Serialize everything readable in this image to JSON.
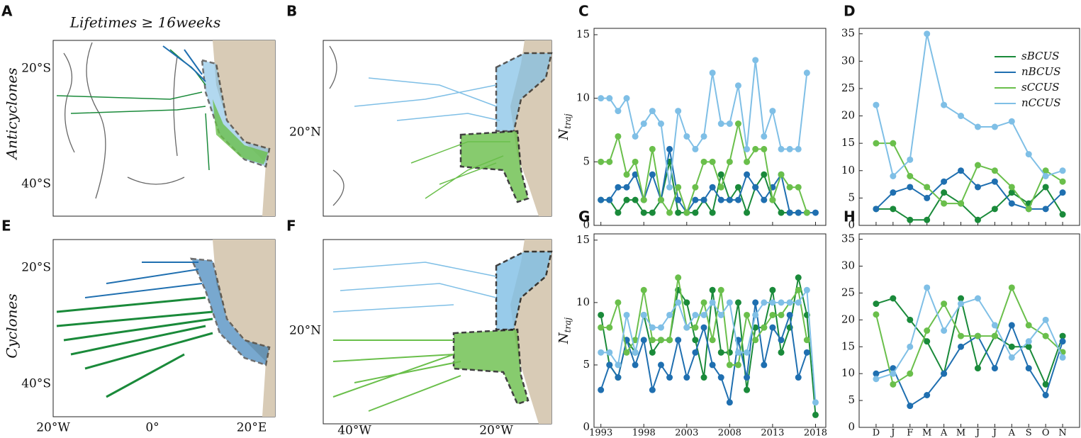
{
  "maps": {
    "title": "Lifetimes ≥ 16weeks",
    "row_labels": [
      "Anticyclones",
      "Cyclones"
    ],
    "panel_letters": [
      "A",
      "B",
      "E",
      "F"
    ],
    "a_lat_ticks": [
      "20°S",
      "40°S"
    ],
    "b_lat_ticks": [
      "20°N"
    ],
    "e_lat_ticks": [
      "20°S",
      "40°S"
    ],
    "f_lat_ticks": [
      "20°N"
    ],
    "e_lon_ticks": [
      "20°W",
      "0°",
      "20°E"
    ],
    "f_lon_ticks": [
      "40°W",
      "20°W"
    ]
  },
  "chart_data": [
    {
      "panel": "C",
      "type": "line",
      "x": [
        1993,
        1994,
        1995,
        1996,
        1997,
        1998,
        1999,
        2000,
        2001,
        2002,
        2003,
        2004,
        2005,
        2006,
        2007,
        2008,
        2009,
        2010,
        2011,
        2012,
        2013,
        2014,
        2015,
        2016,
        2017,
        2018
      ],
      "xlim": [
        1992.2,
        2019.2
      ],
      "xticks": [
        1993,
        1998,
        2003,
        2008,
        2013,
        2018
      ],
      "xtick_labels": false,
      "ylim": [
        0,
        15.5
      ],
      "yticks": [
        0,
        5,
        10,
        15
      ],
      "ylabel": {
        "base": "N",
        "subscript": "traj"
      },
      "legend": false,
      "series": [
        {
          "name": "sBCUS",
          "color": "#1a8a3a",
          "values": [
            2,
            2,
            1,
            2,
            2,
            1,
            1,
            2,
            5,
            1,
            1,
            1,
            2,
            1,
            4,
            2,
            3,
            1,
            3,
            4,
            2,
            1,
            1,
            1,
            null,
            null
          ]
        },
        {
          "name": "nBCUS",
          "color": "#1f6fb0",
          "values": [
            2,
            2,
            3,
            3,
            4,
            2,
            4,
            2,
            6,
            2,
            1,
            2,
            2,
            3,
            2,
            2,
            2,
            4,
            3,
            2,
            3,
            4,
            1,
            1,
            1,
            1
          ]
        },
        {
          "name": "sCCUS",
          "color": "#6abf4b",
          "values": [
            5,
            5,
            7,
            4,
            5,
            2,
            6,
            2,
            1,
            3,
            1,
            3,
            5,
            5,
            3,
            5,
            8,
            5,
            6,
            6,
            2,
            4,
            3,
            3,
            1,
            null
          ]
        },
        {
          "name": "nCCUS",
          "color": "#7fbfe6",
          "values": [
            10,
            10,
            9,
            10,
            7,
            8,
            9,
            8,
            3,
            9,
            7,
            6,
            7,
            12,
            8,
            8,
            11,
            6,
            13,
            7,
            9,
            6,
            6,
            6,
            12,
            null
          ]
        }
      ]
    },
    {
      "panel": "D",
      "type": "line",
      "categories": [
        null,
        null,
        null,
        null,
        null,
        null,
        null,
        null,
        null,
        null,
        null,
        null
      ],
      "ylim": [
        0,
        36
      ],
      "yticks": [
        0,
        5,
        10,
        15,
        20,
        25,
        30,
        35
      ],
      "legend": true,
      "legend_corner": "upper right",
      "series": [
        {
          "name": "sBCUS",
          "color": "#1a8a3a",
          "values": [
            3,
            3,
            1,
            1,
            6,
            4,
            1,
            3,
            6,
            4,
            7,
            2
          ]
        },
        {
          "name": "nBCUS",
          "color": "#1f6fb0",
          "values": [
            3,
            6,
            7,
            5,
            8,
            10,
            7,
            8,
            4,
            3,
            3,
            6
          ]
        },
        {
          "name": "sCCUS",
          "color": "#6abf4b",
          "values": [
            15,
            15,
            9,
            7,
            4,
            4,
            11,
            10,
            7,
            3,
            10,
            8
          ]
        },
        {
          "name": "nCCUS",
          "color": "#7fbfe6",
          "values": [
            22,
            9,
            12,
            35,
            22,
            20,
            18,
            18,
            19,
            13,
            9,
            10
          ]
        }
      ]
    },
    {
      "panel": "G",
      "type": "line",
      "x": [
        1993,
        1994,
        1995,
        1996,
        1997,
        1998,
        1999,
        2000,
        2001,
        2002,
        2003,
        2004,
        2005,
        2006,
        2007,
        2008,
        2009,
        2010,
        2011,
        2012,
        2013,
        2014,
        2015,
        2016,
        2017,
        2018
      ],
      "xlim": [
        1992.2,
        2019.2
      ],
      "xticks": [
        1993,
        1998,
        2003,
        2008,
        2013,
        2018
      ],
      "xtick_labels": true,
      "ylim": [
        0,
        15.5
      ],
      "yticks": [
        0,
        5,
        10,
        15
      ],
      "ylabel": {
        "base": "N",
        "subscript": "traj"
      },
      "legend": false,
      "series": [
        {
          "name": "sBCUS",
          "color": "#1a8a3a",
          "values": [
            9,
            5,
            4,
            7,
            6,
            9,
            6,
            7,
            7,
            11,
            10,
            7,
            4,
            11,
            6,
            6,
            10,
            3,
            8,
            8,
            11,
            6,
            8,
            12,
            9,
            1
          ]
        },
        {
          "name": "nBCUS",
          "color": "#1f6fb0",
          "values": [
            3,
            5,
            4,
            7,
            5,
            7,
            3,
            5,
            4,
            7,
            4,
            6,
            8,
            5,
            4,
            2,
            7,
            4,
            10,
            5,
            8,
            7,
            9,
            4,
            6,
            null
          ]
        },
        {
          "name": "sCCUS",
          "color": "#6abf4b",
          "values": [
            8,
            8,
            10,
            6,
            7,
            11,
            7,
            7,
            7,
            12,
            8,
            8,
            10,
            7,
            11,
            5,
            5,
            9,
            7,
            8,
            9,
            9,
            10,
            11,
            7,
            null
          ]
        },
        {
          "name": "nCCUS",
          "color": "#7fbfe6",
          "values": [
            6,
            6,
            5,
            9,
            6,
            9,
            8,
            8,
            9,
            10,
            8,
            9,
            9,
            10,
            9,
            10,
            6,
            6,
            9,
            10,
            10,
            10,
            10,
            10,
            11,
            2
          ]
        }
      ]
    },
    {
      "panel": "H",
      "type": "line",
      "categories": [
        "D",
        "J",
        "F",
        "M",
        "A",
        "M",
        "J",
        "J",
        "A",
        "S",
        "O",
        "N"
      ],
      "ylim": [
        0,
        36
      ],
      "yticks": [
        0,
        5,
        10,
        15,
        20,
        25,
        30,
        35
      ],
      "legend": false,
      "series": [
        {
          "name": "sBCUS",
          "color": "#1a8a3a",
          "values": [
            23,
            24,
            20,
            16,
            10,
            24,
            11,
            17,
            15,
            15,
            8,
            17
          ]
        },
        {
          "name": "nBCUS",
          "color": "#1f6fb0",
          "values": [
            10,
            11,
            4,
            6,
            10,
            15,
            17,
            11,
            19,
            11,
            6,
            16
          ]
        },
        {
          "name": "sCCUS",
          "color": "#6abf4b",
          "values": [
            21,
            8,
            10,
            18,
            23,
            17,
            17,
            17,
            26,
            19,
            17,
            14
          ]
        },
        {
          "name": "nCCUS",
          "color": "#7fbfe6",
          "values": [
            9,
            10,
            15,
            26,
            18,
            23,
            24,
            19,
            13,
            16,
            20,
            13
          ]
        }
      ]
    }
  ]
}
